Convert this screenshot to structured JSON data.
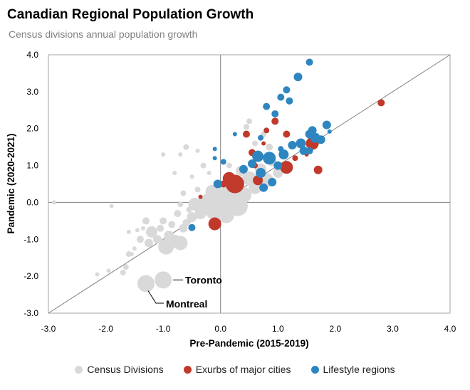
{
  "chart_data": {
    "type": "scatter",
    "title": "Canadian Regional Population Growth",
    "subtitle": "Census divisions annual population growth",
    "xlabel": "Pre-Pandemic (2015-2019)",
    "ylabel": "Pandemic (2020-2021)",
    "xlim": [
      -3.0,
      4.0
    ],
    "ylim": [
      -3.0,
      4.0
    ],
    "xticks": [
      "-3.0",
      "-2.0",
      "-1.0",
      "0.0",
      "1.0",
      "2.0",
      "3.0",
      "4.0"
    ],
    "yticks": [
      "-3.0",
      "-2.0",
      "-1.0",
      "0.0",
      "1.0",
      "2.0",
      "3.0",
      "4.0"
    ],
    "grid": false,
    "legend_position": "bottom",
    "reference_line": "y = x",
    "colors": {
      "census": "#d9d9d9",
      "exurbs": "#c0392b",
      "lifestyle": "#2e86c1"
    },
    "annotations": [
      {
        "text": "Toronto",
        "x": -1.0,
        "y": -2.1
      },
      {
        "text": "Montreal",
        "x": -1.3,
        "y": -2.2
      }
    ],
    "series": [
      {
        "name": "Census Divisions",
        "color": "#d9d9d9",
        "points": [
          {
            "x": -2.9,
            "y": 0.0,
            "s": 3
          },
          {
            "x": -2.15,
            "y": -1.95,
            "s": 3
          },
          {
            "x": -1.95,
            "y": -1.85,
            "s": 3
          },
          {
            "x": -1.7,
            "y": -1.9,
            "s": 4
          },
          {
            "x": -1.65,
            "y": -1.75,
            "s": 4
          },
          {
            "x": -1.6,
            "y": -1.4,
            "s": 4
          },
          {
            "x": -1.55,
            "y": -1.4,
            "s": 3
          },
          {
            "x": -1.5,
            "y": -1.25,
            "s": 3
          },
          {
            "x": -1.6,
            "y": -0.8,
            "s": 3
          },
          {
            "x": -1.45,
            "y": -0.75,
            "s": 3
          },
          {
            "x": -1.4,
            "y": -1.0,
            "s": 5
          },
          {
            "x": -1.35,
            "y": -0.7,
            "s": 3
          },
          {
            "x": -1.3,
            "y": -0.5,
            "s": 5
          },
          {
            "x": -1.25,
            "y": -1.1,
            "s": 6
          },
          {
            "x": -1.2,
            "y": -0.8,
            "s": 8
          },
          {
            "x": -1.1,
            "y": -1.0,
            "s": 6
          },
          {
            "x": -1.05,
            "y": -0.7,
            "s": 5
          },
          {
            "x": -1.0,
            "y": -0.5,
            "s": 5
          },
          {
            "x": -0.95,
            "y": -1.2,
            "s": 11
          },
          {
            "x": -0.9,
            "y": -0.9,
            "s": 7
          },
          {
            "x": -0.85,
            "y": -0.6,
            "s": 5
          },
          {
            "x": -0.8,
            "y": -1.05,
            "s": 9
          },
          {
            "x": -0.75,
            "y": -0.3,
            "s": 5
          },
          {
            "x": -0.7,
            "y": -1.1,
            "s": 10
          },
          {
            "x": -0.7,
            "y": -0.05,
            "s": 4
          },
          {
            "x": -0.65,
            "y": -0.7,
            "s": 6
          },
          {
            "x": -0.6,
            "y": -0.55,
            "s": 5
          },
          {
            "x": -0.55,
            "y": -0.2,
            "s": 4
          },
          {
            "x": -0.5,
            "y": -0.4,
            "s": 7
          },
          {
            "x": -0.45,
            "y": -0.05,
            "s": 9
          },
          {
            "x": -0.4,
            "y": 0.35,
            "s": 4
          },
          {
            "x": -0.35,
            "y": -0.3,
            "s": 8
          },
          {
            "x": -0.3,
            "y": -0.1,
            "s": 12
          },
          {
            "x": -0.2,
            "y": 0.0,
            "s": 13
          },
          {
            "x": -0.15,
            "y": 0.3,
            "s": 9
          },
          {
            "x": -0.1,
            "y": -0.2,
            "s": 14
          },
          {
            "x": 0.05,
            "y": 0.1,
            "s": 16
          },
          {
            "x": 0.1,
            "y": -0.35,
            "s": 11
          },
          {
            "x": 0.2,
            "y": 0.3,
            "s": 12
          },
          {
            "x": 0.3,
            "y": -0.1,
            "s": 14
          },
          {
            "x": 0.4,
            "y": 0.2,
            "s": 11
          },
          {
            "x": 0.5,
            "y": 0.65,
            "s": 10
          },
          {
            "x": 0.35,
            "y": 0.85,
            "s": 7
          },
          {
            "x": 0.6,
            "y": 0.4,
            "s": 9
          },
          {
            "x": 0.7,
            "y": 0.9,
            "s": 8
          },
          {
            "x": 0.8,
            "y": 0.6,
            "s": 10
          },
          {
            "x": 0.9,
            "y": 1.1,
            "s": 6
          },
          {
            "x": 1.0,
            "y": 0.8,
            "s": 7
          },
          {
            "x": -1.0,
            "y": 1.3,
            "s": 3
          },
          {
            "x": -0.8,
            "y": 0.8,
            "s": 3
          },
          {
            "x": -0.7,
            "y": 1.3,
            "s": 3
          },
          {
            "x": -0.6,
            "y": 1.5,
            "s": 4
          },
          {
            "x": -0.5,
            "y": 0.7,
            "s": 3
          },
          {
            "x": -0.4,
            "y": 1.4,
            "s": 3
          },
          {
            "x": -0.3,
            "y": 1.0,
            "s": 4
          },
          {
            "x": -0.2,
            "y": 0.8,
            "s": 3
          },
          {
            "x": 0.15,
            "y": 1.0,
            "s": 4
          },
          {
            "x": 0.45,
            "y": 2.05,
            "s": 4
          },
          {
            "x": 0.5,
            "y": 2.2,
            "s": 4
          },
          {
            "x": 0.6,
            "y": 1.6,
            "s": 4
          },
          {
            "x": 0.75,
            "y": 1.85,
            "s": 4
          },
          {
            "x": 0.85,
            "y": 1.5,
            "s": 5
          },
          {
            "x": 1.1,
            "y": 1.3,
            "s": 4
          },
          {
            "x": -1.9,
            "y": -0.1,
            "s": 3
          },
          {
            "x": -0.65,
            "y": 0.25,
            "s": 4
          }
        ]
      },
      {
        "name": "Exurbs of major cities",
        "color": "#c0392b",
        "points": [
          {
            "x": -0.35,
            "y": 0.15,
            "s": 3
          },
          {
            "x": -0.1,
            "y": -0.58,
            "s": 9
          },
          {
            "x": 0.05,
            "y": 0.5,
            "s": 5
          },
          {
            "x": 0.15,
            "y": 0.65,
            "s": 9
          },
          {
            "x": 0.25,
            "y": 0.5,
            "s": 13
          },
          {
            "x": 0.45,
            "y": 1.85,
            "s": 5
          },
          {
            "x": 0.55,
            "y": 1.35,
            "s": 5
          },
          {
            "x": 0.6,
            "y": 1.0,
            "s": 4
          },
          {
            "x": 0.65,
            "y": 0.6,
            "s": 7
          },
          {
            "x": 0.75,
            "y": 1.6,
            "s": 3
          },
          {
            "x": 0.8,
            "y": 1.95,
            "s": 4
          },
          {
            "x": 0.95,
            "y": 2.2,
            "s": 5
          },
          {
            "x": 1.15,
            "y": 1.85,
            "s": 5
          },
          {
            "x": 1.15,
            "y": 0.95,
            "s": 9
          },
          {
            "x": 1.5,
            "y": 1.3,
            "s": 3
          },
          {
            "x": 1.6,
            "y": 1.6,
            "s": 9
          },
          {
            "x": 1.7,
            "y": 0.88,
            "s": 6
          },
          {
            "x": 2.8,
            "y": 2.7,
            "s": 5
          },
          {
            "x": 1.3,
            "y": 1.2,
            "s": 4
          }
        ]
      },
      {
        "name": "Lifestyle regions",
        "color": "#2e86c1",
        "points": [
          {
            "x": -0.5,
            "y": -0.68,
            "s": 5
          },
          {
            "x": -0.1,
            "y": 1.45,
            "s": 3
          },
          {
            "x": -0.05,
            "y": 0.5,
            "s": 6
          },
          {
            "x": 0.05,
            "y": 1.1,
            "s": 4
          },
          {
            "x": -0.1,
            "y": 1.2,
            "s": 3
          },
          {
            "x": 0.25,
            "y": 1.85,
            "s": 3
          },
          {
            "x": 0.4,
            "y": 0.9,
            "s": 6
          },
          {
            "x": 0.55,
            "y": 1.05,
            "s": 6
          },
          {
            "x": 0.65,
            "y": 1.25,
            "s": 8
          },
          {
            "x": 0.7,
            "y": 0.8,
            "s": 7
          },
          {
            "x": 0.7,
            "y": 1.75,
            "s": 4
          },
          {
            "x": 0.75,
            "y": 0.4,
            "s": 6
          },
          {
            "x": 0.8,
            "y": 2.6,
            "s": 5
          },
          {
            "x": 0.85,
            "y": 1.2,
            "s": 9
          },
          {
            "x": 0.9,
            "y": 0.55,
            "s": 6
          },
          {
            "x": 0.95,
            "y": 2.4,
            "s": 5
          },
          {
            "x": 1.0,
            "y": 1.0,
            "s": 6
          },
          {
            "x": 1.05,
            "y": 2.85,
            "s": 5
          },
          {
            "x": 1.1,
            "y": 1.3,
            "s": 7
          },
          {
            "x": 1.15,
            "y": 3.05,
            "s": 5
          },
          {
            "x": 1.2,
            "y": 2.75,
            "s": 5
          },
          {
            "x": 1.25,
            "y": 1.55,
            "s": 6
          },
          {
            "x": 1.35,
            "y": 3.4,
            "s": 6
          },
          {
            "x": 1.4,
            "y": 1.6,
            "s": 7
          },
          {
            "x": 1.45,
            "y": 1.4,
            "s": 6
          },
          {
            "x": 1.55,
            "y": 3.8,
            "s": 5
          },
          {
            "x": 1.55,
            "y": 1.85,
            "s": 6
          },
          {
            "x": 1.6,
            "y": 1.95,
            "s": 6
          },
          {
            "x": 1.65,
            "y": 1.75,
            "s": 7
          },
          {
            "x": 1.75,
            "y": 1.7,
            "s": 6
          },
          {
            "x": 1.85,
            "y": 2.1,
            "s": 6
          },
          {
            "x": 1.9,
            "y": 1.92,
            "s": 3
          },
          {
            "x": 1.55,
            "y": 1.4,
            "s": 5
          },
          {
            "x": 1.05,
            "y": 1.45,
            "s": 4
          }
        ]
      }
    ]
  }
}
